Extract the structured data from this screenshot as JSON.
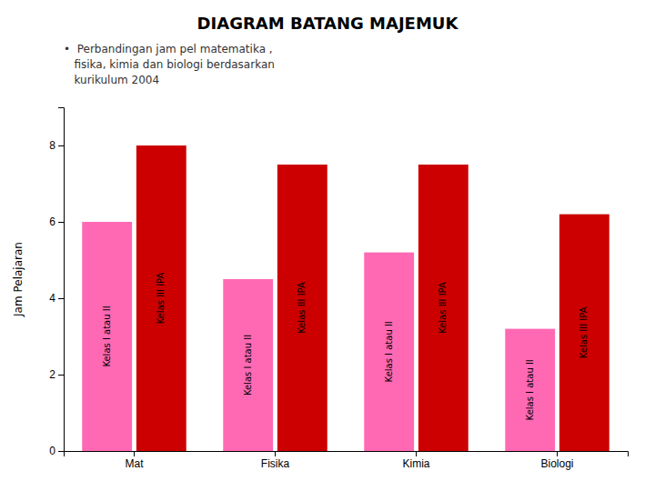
{
  "chart_data": {
    "type": "bar",
    "title": "DIAGRAM BATANG MAJEMUK",
    "subtitle": [
      "•  Perbandingan jam pel matematika ,",
      "   fisika, kimia dan biologi berdasarkan",
      "   kurikulum 2004"
    ],
    "categories": [
      "Mat",
      "Fisika",
      "Kimia",
      "Biologi"
    ],
    "series": [
      {
        "name": "Kelas I atau II",
        "values": [
          6,
          4.5,
          5.2,
          3.2
        ],
        "color": "#FF69B4"
      },
      {
        "name": "Kelas III IPA",
        "values": [
          8,
          7.5,
          7.5,
          6.2
        ],
        "color": "#CC0000"
      }
    ],
    "ylabel": "Jam Pelajaran",
    "ylim": [
      0,
      9
    ],
    "yticks": [
      0,
      2,
      4,
      6,
      8
    ]
  }
}
